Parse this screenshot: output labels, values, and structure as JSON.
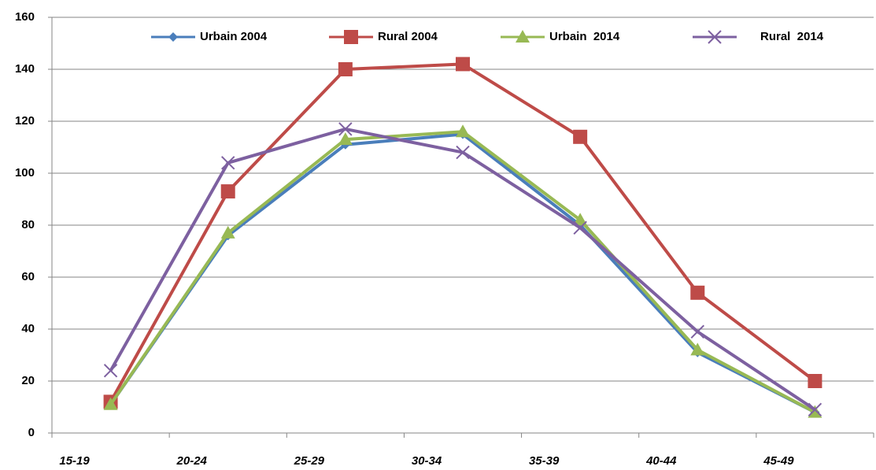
{
  "chart_data": {
    "type": "line",
    "categories": [
      "15-19",
      "20-24",
      "25-29",
      "30-34",
      "35-39",
      "40-44",
      "45-49"
    ],
    "series": [
      {
        "name": "Urbain 2004",
        "color": "#4a7ebb",
        "marker": "diamond",
        "values": [
          11,
          76,
          111,
          115,
          80,
          31,
          8
        ]
      },
      {
        "name": "Rural 2004",
        "color": "#be4b48",
        "marker": "square",
        "values": [
          12,
          93,
          140,
          142,
          114,
          54,
          20
        ]
      },
      {
        "name": "Urbain  2014",
        "color": "#98b954",
        "marker": "triangle",
        "values": [
          11,
          77,
          113,
          116,
          82,
          32,
          8
        ]
      },
      {
        "name": "Rural  2014",
        "color": "#7d60a0",
        "marker": "x",
        "values": [
          24,
          104,
          117,
          108,
          79,
          39,
          9
        ]
      }
    ],
    "ylim": [
      0,
      160
    ],
    "yticks": [
      0,
      20,
      40,
      60,
      80,
      100,
      120,
      140,
      160
    ],
    "grid": true,
    "legend": "top"
  }
}
